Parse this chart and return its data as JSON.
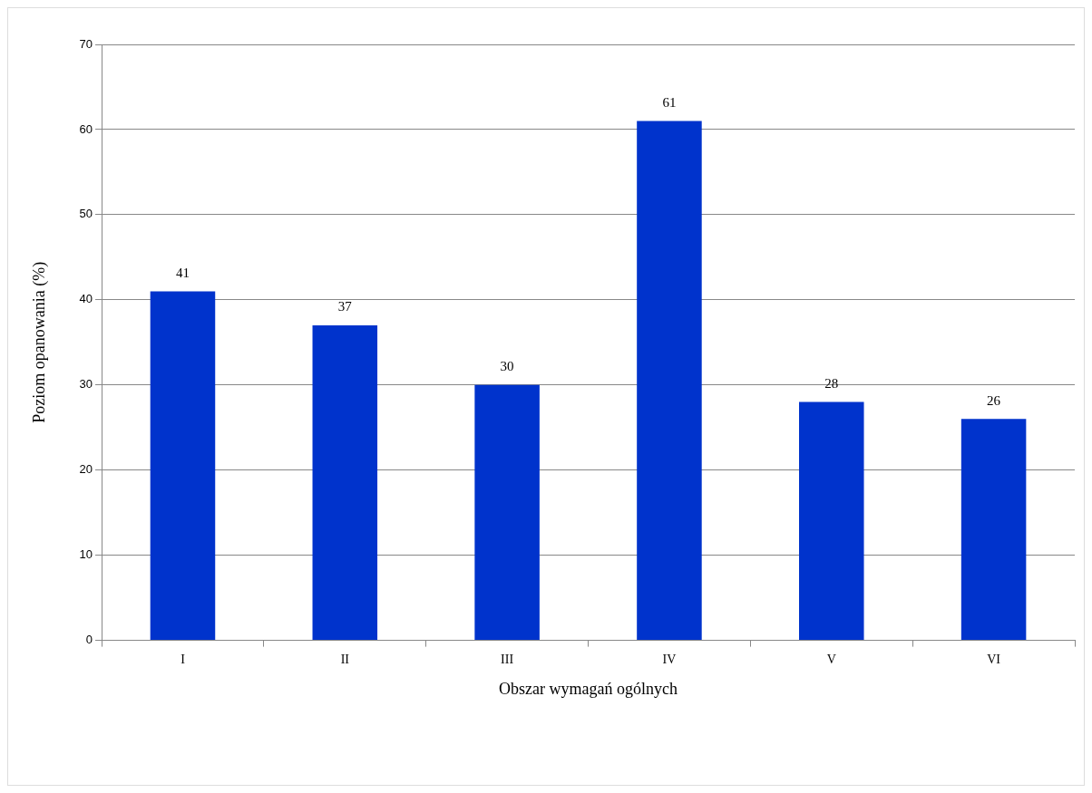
{
  "chart_data": {
    "type": "bar",
    "xlabel": "Obszar wymagań ogólnych",
    "ylabel": "Poziom opanowania (%)",
    "categories": [
      "I",
      "II",
      "III",
      "IV",
      "V",
      "VI"
    ],
    "values": [
      41,
      37,
      30,
      61,
      28,
      26
    ],
    "color": "#0033cc",
    "ylim": [
      0,
      70
    ],
    "yticks": [
      0,
      10,
      20,
      30,
      40,
      50,
      60,
      70
    ],
    "grid": "y",
    "legend": false,
    "data_labels": true
  }
}
